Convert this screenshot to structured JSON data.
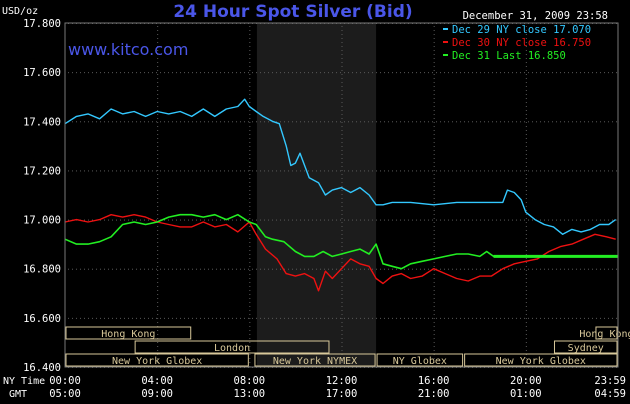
{
  "page": {
    "title": "24 Hour Spot Silver (Bid)",
    "brand": "www.kitco.com",
    "unit": "USD/oz",
    "timestamp": "December 31, 2009 23:58",
    "row_label_ny": "NY Time",
    "row_label_gmt": "GMT"
  },
  "colors": {
    "background": "#000000",
    "plot_background": "#000000",
    "ny_shade": "#1c1c1c",
    "grid": "#5a5a5a",
    "axis_text": "#ffffff",
    "title": "#4a56e8",
    "brand": "#4a56e8",
    "session_box": "#d8c89a",
    "dec29": "#33c8ff",
    "dec30": "#ee1111",
    "dec31": "#22ee22"
  },
  "legend": [
    {
      "label": "Dec 29 NY close 17.070",
      "color": "#33c8ff"
    },
    {
      "label": "Dec 30 NY close 16.750",
      "color": "#ee1111"
    },
    {
      "label": "Dec 31 Last 16.850",
      "color": "#22ee22"
    }
  ],
  "sessions": [
    {
      "label": "Hong Kong",
      "row": 0,
      "start": 0,
      "end": 5.5
    },
    {
      "label": "Hong Kong",
      "row": 0,
      "start": 23,
      "end": 24
    },
    {
      "label": "London",
      "row": 1,
      "start": 3,
      "end": 11.5
    },
    {
      "label": "Sydney",
      "row": 1,
      "start": 21.2,
      "end": 24
    },
    {
      "label": "New York Globex",
      "row": 2,
      "start": 0,
      "end": 8
    },
    {
      "label": "New York NYMEX",
      "row": 2,
      "start": 8.2,
      "end": 13.5
    },
    {
      "label": "NY Globex",
      "row": 2,
      "start": 13.5,
      "end": 17.3
    },
    {
      "label": "New York Globex",
      "row": 2,
      "start": 17.3,
      "end": 24
    }
  ],
  "chart_data": {
    "type": "line",
    "title": "24 Hour Spot Silver (Bid)",
    "ylabel": "USD/oz",
    "ylim": [
      16.4,
      17.8
    ],
    "yticks": [
      "16.400",
      "16.600",
      "16.800",
      "17.000",
      "17.200",
      "17.400",
      "17.600",
      "17.800"
    ],
    "xlim": [
      0,
      24
    ],
    "ny_session_shading": [
      8.33,
      13.5
    ],
    "x_ticks_ny": [
      "00:00",
      "04:00",
      "08:00",
      "12:00",
      "16:00",
      "20:00",
      "23:59"
    ],
    "x_ticks_gmt": [
      "05:00",
      "09:00",
      "13:00",
      "17:00",
      "21:00",
      "01:00",
      "04:59"
    ],
    "grid": true,
    "legend_position": "top-right",
    "series": [
      {
        "name": "Dec 29 NY close 17.070",
        "x": [
          0,
          0.5,
          1,
          1.5,
          2,
          2.5,
          3,
          3.5,
          4,
          4.5,
          5,
          5.5,
          6,
          6.5,
          7,
          7.5,
          7.8,
          8,
          8.3,
          8.6,
          9,
          9.3,
          9.6,
          9.8,
          10,
          10.2,
          10.6,
          11,
          11.3,
          11.6,
          12,
          12.4,
          12.8,
          13.2,
          13.5,
          13.8,
          14.2,
          15,
          16,
          17,
          17.5,
          18,
          18.5,
          19,
          19.2,
          19.5,
          19.8,
          20,
          20.4,
          20.8,
          21.2,
          21.6,
          22,
          22.4,
          22.8,
          23.2,
          23.6,
          23.9
        ],
        "y": [
          17.39,
          17.42,
          17.43,
          17.41,
          17.45,
          17.43,
          17.44,
          17.42,
          17.44,
          17.43,
          17.44,
          17.42,
          17.45,
          17.42,
          17.45,
          17.46,
          17.49,
          17.46,
          17.44,
          17.42,
          17.4,
          17.39,
          17.3,
          17.22,
          17.23,
          17.27,
          17.17,
          17.15,
          17.1,
          17.12,
          17.13,
          17.11,
          17.13,
          17.1,
          17.06,
          17.06,
          17.07,
          17.07,
          17.06,
          17.07,
          17.07,
          17.07,
          17.07,
          17.07,
          17.12,
          17.11,
          17.08,
          17.03,
          17.0,
          16.98,
          16.97,
          16.94,
          16.96,
          16.95,
          16.96,
          16.98,
          16.98,
          17.0
        ]
      },
      {
        "name": "Dec 30 NY close 16.750",
        "x": [
          0,
          0.5,
          1,
          1.5,
          2,
          2.5,
          3,
          3.5,
          4,
          4.5,
          5,
          5.5,
          6,
          6.5,
          7,
          7.5,
          8,
          8.3,
          8.7,
          9.2,
          9.6,
          10,
          10.4,
          10.8,
          11,
          11.3,
          11.6,
          12,
          12.4,
          12.8,
          13.2,
          13.5,
          13.8,
          14.2,
          14.6,
          15,
          15.5,
          16,
          16.5,
          17,
          17.5,
          18,
          18.5,
          19,
          19.5,
          20,
          20.5,
          21,
          21.5,
          22,
          22.5,
          23,
          23.5,
          23.9
        ],
        "y": [
          16.99,
          17.0,
          16.99,
          17.0,
          17.02,
          17.01,
          17.02,
          17.01,
          16.99,
          16.98,
          16.97,
          16.97,
          16.99,
          16.97,
          16.98,
          16.95,
          16.99,
          16.94,
          16.88,
          16.84,
          16.78,
          16.77,
          16.78,
          16.76,
          16.71,
          16.79,
          16.76,
          16.8,
          16.84,
          16.82,
          16.81,
          16.76,
          16.74,
          16.77,
          16.78,
          16.76,
          16.77,
          16.8,
          16.78,
          16.76,
          16.75,
          16.77,
          16.77,
          16.8,
          16.82,
          16.83,
          16.84,
          16.87,
          16.89,
          16.9,
          16.92,
          16.94,
          16.93,
          16.92
        ]
      },
      {
        "name": "Dec 31 Last 16.850",
        "x": [
          0,
          0.5,
          1,
          1.5,
          2,
          2.5,
          3,
          3.5,
          4,
          4.5,
          5,
          5.5,
          6,
          6.5,
          7,
          7.5,
          8,
          8.3,
          8.7,
          9,
          9.5,
          10,
          10.4,
          10.8,
          11.2,
          11.6,
          12,
          12.4,
          12.8,
          13.2,
          13.5,
          13.8,
          14.2,
          14.6,
          15,
          15.5,
          16,
          16.5,
          17,
          17.5,
          18,
          18.3,
          18.6,
          24
        ],
        "y": [
          16.92,
          16.9,
          16.9,
          16.91,
          16.93,
          16.98,
          16.99,
          16.98,
          16.99,
          17.01,
          17.02,
          17.02,
          17.01,
          17.02,
          17.0,
          17.02,
          16.99,
          16.98,
          16.93,
          16.92,
          16.91,
          16.87,
          16.85,
          16.85,
          16.87,
          16.85,
          16.86,
          16.87,
          16.88,
          16.86,
          16.9,
          16.82,
          16.81,
          16.8,
          16.82,
          16.83,
          16.84,
          16.85,
          16.86,
          16.86,
          16.85,
          16.87,
          16.85,
          16.85
        ]
      }
    ]
  }
}
